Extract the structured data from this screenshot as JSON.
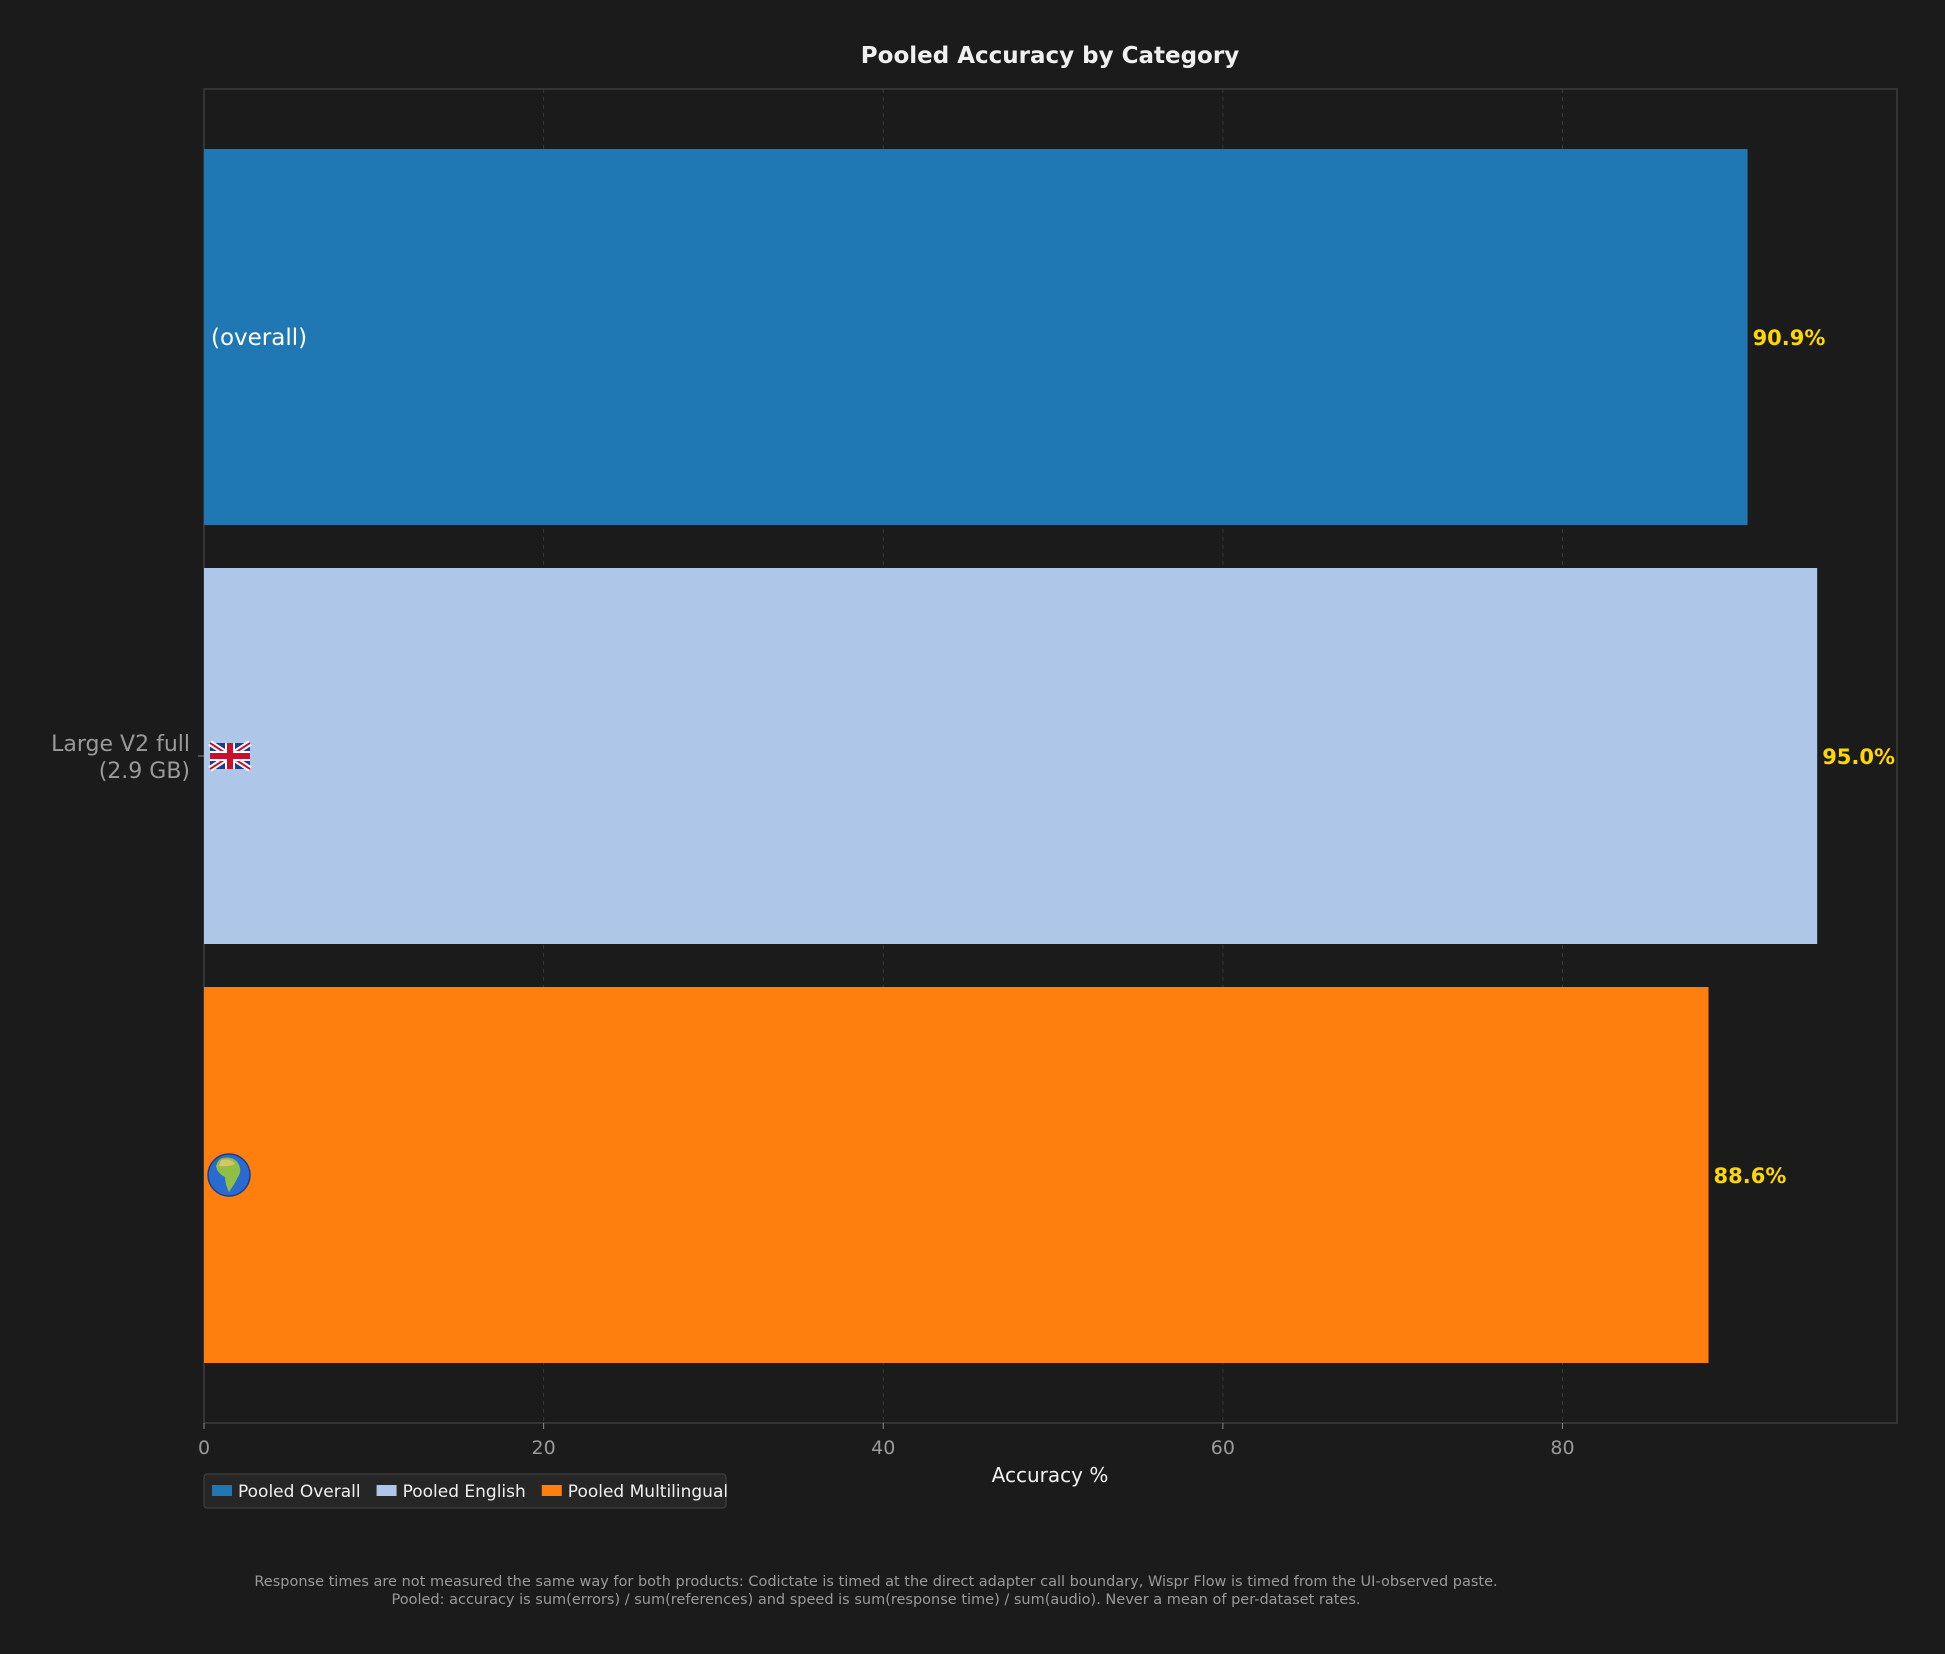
{
  "chart_data": {
    "type": "bar",
    "orientation": "horizontal",
    "title": "Pooled Accuracy by Category",
    "xlabel": "Accuracy %",
    "ylabel": "",
    "xlim": [
      0,
      99.7
    ],
    "xticks": [
      0,
      20,
      40,
      60,
      80
    ],
    "grid": true,
    "legend_position": "bottom-left, below the axis",
    "category_label": "Large V2 full\n(2.9 GB)",
    "series": [
      {
        "name": "Pooled Overall",
        "value": 90.9,
        "value_label": "90.9%",
        "inline_label": "(overall)",
        "icon": "",
        "color": "#1f77b4"
      },
      {
        "name": "Pooled English",
        "value": 95.0,
        "value_label": "95.0%",
        "inline_label": "",
        "icon": "uk-flag-icon",
        "color": "#aec7e8"
      },
      {
        "name": "Pooled Multilingual",
        "value": 88.6,
        "value_label": "88.6%",
        "inline_label": "",
        "icon": "globe-africa-icon",
        "color": "#ff7f0e"
      }
    ],
    "value_label_color": "#ffd700"
  },
  "footnote": {
    "line1": "Response times are not measured the same way for both products: Codictate is timed at the direct adapter call boundary, Wispr Flow is timed from the UI-observed paste.",
    "line2": "Pooled: accuracy is sum(errors) / sum(references) and speed is sum(response time) / sum(audio). Never a mean of per-dataset rates."
  }
}
